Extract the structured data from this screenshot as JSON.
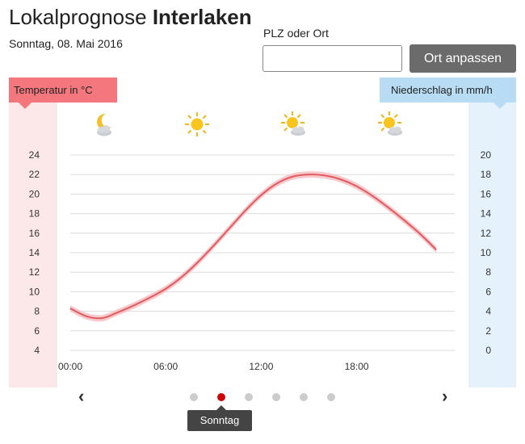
{
  "header": {
    "title_prefix": "Lokalprognose",
    "title_place": "Interlaken",
    "date": "Sonntag, 08. Mai 2016"
  },
  "search": {
    "label": "PLZ oder Ort",
    "value": "",
    "button_label": "Ort anpassen"
  },
  "legend": {
    "temperature_label": "Temperatur in °C",
    "precipitation_label": "Niederschlag in mm/h"
  },
  "weather_icons": [
    "moon-cloud-icon",
    "sun-icon",
    "sun-cloud-icon",
    "sun-cloud-icon"
  ],
  "pager": {
    "dots": 6,
    "active_index": 1,
    "tooltip": "Sonntag",
    "prev_icon": "chevron-left-icon",
    "next_icon": "chevron-right-icon"
  },
  "colors": {
    "temp_line": "#e05a5f",
    "temp_band": "#f6c3c6",
    "grid": "#dcdcdc"
  },
  "chart_data": {
    "type": "line",
    "x": [
      "00:00",
      "01:00",
      "02:00",
      "03:00",
      "04:00",
      "05:00",
      "06:00",
      "07:00",
      "08:00",
      "09:00",
      "10:00",
      "11:00",
      "12:00",
      "13:00",
      "14:00",
      "15:00",
      "16:00",
      "17:00",
      "18:00",
      "19:00",
      "20:00",
      "21:00",
      "22:00",
      "23:00"
    ],
    "x_ticks": [
      "00:00",
      "06:00",
      "12:00",
      "18:00"
    ],
    "y_left_ticks": [
      "24",
      "22",
      "20",
      "18",
      "16",
      "14",
      "12",
      "10",
      "8",
      "6",
      "4"
    ],
    "y_right_ticks": [
      "20",
      "18",
      "16",
      "14",
      "12",
      "10",
      "8",
      "6",
      "4",
      "2",
      "0"
    ],
    "ylim_left": [
      4,
      24
    ],
    "ylim_right": [
      0,
      20
    ],
    "grid": true,
    "series": [
      {
        "values": [
          8.3,
          7.5,
          7.3,
          7.9,
          8.6,
          9.4,
          10.3,
          11.5,
          13.0,
          14.7,
          16.5,
          18.3,
          19.9,
          21.1,
          21.8,
          22.0,
          21.9,
          21.5,
          20.8,
          19.8,
          18.6,
          17.3,
          15.9,
          14.3
        ]
      }
    ]
  }
}
